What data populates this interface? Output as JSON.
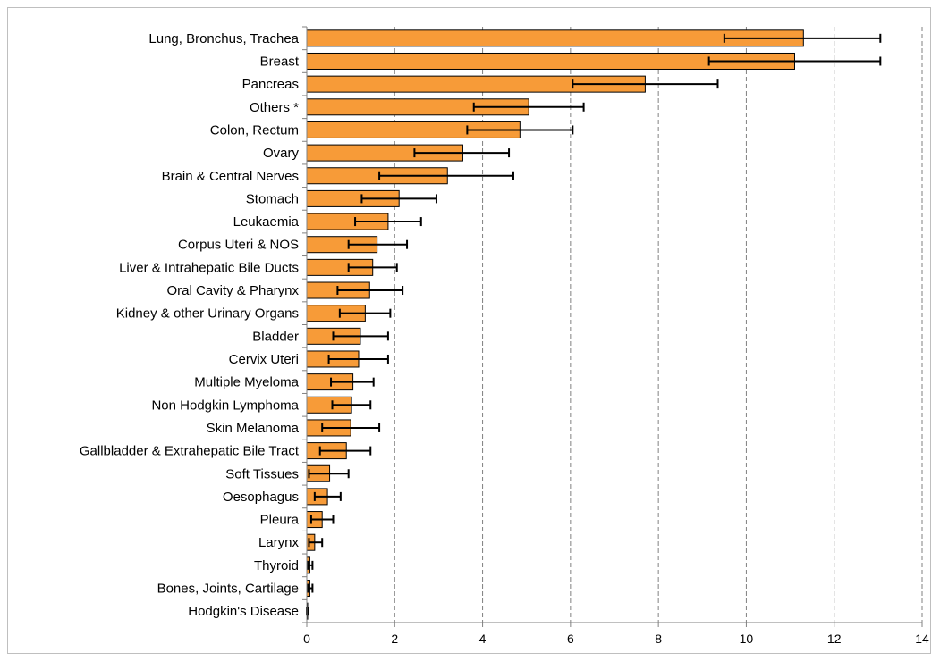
{
  "chart_data": {
    "type": "bar",
    "orientation": "horizontal",
    "title": "",
    "xlabel": "",
    "ylabel": "",
    "xlim": [
      0,
      14
    ],
    "x_ticks": [
      0,
      2,
      4,
      6,
      8,
      10,
      12,
      14
    ],
    "grid": "vertical dashed",
    "legend": "none",
    "bar_color": "#f79b38",
    "bar_edge_color": "#000000",
    "error_bar_color": "#000000",
    "categories": [
      "Lung, Bronchus, Trachea",
      "Breast",
      "Pancreas",
      "Others *",
      "Colon, Rectum",
      "Ovary",
      "Brain & Central Nerves",
      "Stomach",
      "Leukaemia",
      "Corpus Uteri & NOS",
      "Liver & Intrahepatic Bile Ducts",
      "Oral Cavity & Pharynx",
      "Kidney & other Urinary Organs",
      "Bladder",
      "Cervix Uteri",
      "Multiple Myeloma",
      "Non Hodgkin Lymphoma",
      "Skin Melanoma",
      "Gallbladder & Extrahepatic Bile Tract",
      "Soft Tissues",
      "Oesophagus",
      "Pleura",
      "Larynx",
      "Thyroid",
      "Bones, Joints, Cartilage",
      "Hodgkin's Disease"
    ],
    "values": [
      11.3,
      11.1,
      7.7,
      5.05,
      4.85,
      3.55,
      3.2,
      2.1,
      1.85,
      1.6,
      1.5,
      1.43,
      1.33,
      1.22,
      1.18,
      1.05,
      1.02,
      1.0,
      0.9,
      0.52,
      0.47,
      0.35,
      0.18,
      0.07,
      0.07,
      0.01
    ],
    "error_low": [
      9.5,
      9.15,
      6.05,
      3.8,
      3.65,
      2.45,
      1.65,
      1.25,
      1.1,
      0.95,
      0.95,
      0.7,
      0.75,
      0.6,
      0.5,
      0.55,
      0.58,
      0.35,
      0.3,
      0.05,
      0.18,
      0.1,
      0.05,
      0.02,
      0.02,
      0.0
    ],
    "error_high": [
      13.05,
      13.05,
      9.35,
      6.3,
      6.05,
      4.6,
      4.7,
      2.95,
      2.6,
      2.28,
      2.05,
      2.18,
      1.9,
      1.85,
      1.85,
      1.52,
      1.45,
      1.65,
      1.45,
      0.95,
      0.77,
      0.6,
      0.35,
      0.13,
      0.13,
      0.02
    ]
  }
}
